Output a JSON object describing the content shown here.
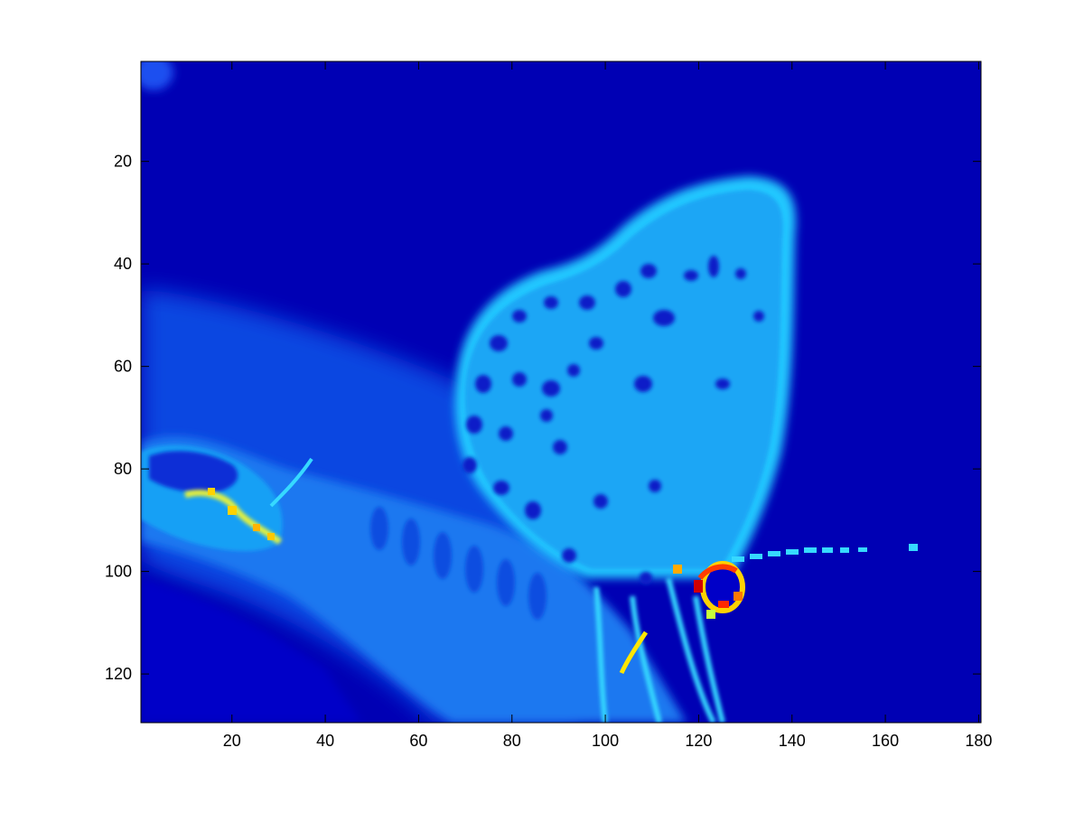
{
  "chart_data": {
    "type": "heatmap",
    "title": "",
    "xlabel": "",
    "ylabel": "",
    "xlim": [
      0.5,
      180.5
    ],
    "ylim": [
      129.5,
      0.5
    ],
    "y_direction": "reversed",
    "grid": false,
    "colormap": "jet",
    "background_value_color": "#0000b4",
    "x_ticks": [
      20,
      40,
      60,
      80,
      100,
      120,
      140,
      160,
      180
    ],
    "x_tick_labels": [
      "20",
      "40",
      "60",
      "80",
      "100",
      "120",
      "140",
      "160",
      "180"
    ],
    "y_ticks": [
      20,
      40,
      60,
      80,
      100,
      120
    ],
    "y_tick_labels": [
      "20",
      "40",
      "60",
      "80",
      "100",
      "120"
    ],
    "features": [
      {
        "kind": "wing",
        "x": [
          68,
          140
        ],
        "y": [
          24,
          125
        ],
        "level": "cyan"
      },
      {
        "kind": "body",
        "x": [
          0,
          110
        ],
        "y": [
          50,
          129
        ],
        "level": "light-blue"
      },
      {
        "kind": "hot-spot",
        "x": [
          115,
          130
        ],
        "y": [
          98,
          110
        ],
        "level": "red"
      },
      {
        "kind": "hot-spot",
        "x": [
          8,
          32
        ],
        "y": [
          82,
          94
        ],
        "level": "yellow"
      },
      {
        "kind": "antenna",
        "x": [
          130,
          166
        ],
        "y": [
          95,
          98
        ],
        "level": "cyan"
      }
    ]
  }
}
